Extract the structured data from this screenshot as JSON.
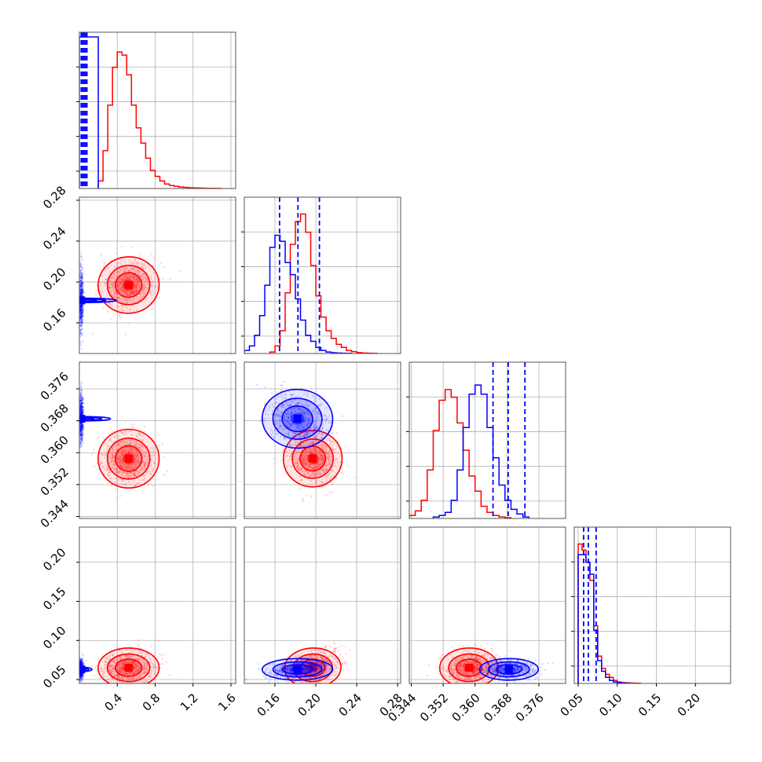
{
  "chart_data": {
    "type": "corner",
    "colors": {
      "blue": "#0000ff",
      "red": "#ff0000",
      "grid": "#b0b0b0",
      "frame": "#555555"
    },
    "grid": true,
    "parameters": [
      {
        "id": "p0",
        "range": [
          0,
          1.65
        ],
        "ticks": [
          "0.4",
          "0.8",
          "1.2",
          "1.6"
        ],
        "tick_values": [
          0.4,
          0.8,
          1.2,
          1.6
        ]
      },
      {
        "id": "p1",
        "range": [
          0.13,
          0.283
        ],
        "ticks": [
          "0.16",
          "0.20",
          "0.24",
          "0.28"
        ],
        "tick_values": [
          0.16,
          0.2,
          0.24,
          0.28
        ]
      },
      {
        "id": "p2",
        "range": [
          0.3435,
          0.3827
        ],
        "ticks": [
          "0.344",
          "0.352",
          "0.360",
          "0.368",
          "0.376"
        ],
        "tick_values": [
          0.344,
          0.352,
          0.36,
          0.368,
          0.376
        ]
      },
      {
        "id": "p3",
        "range": [
          0.045,
          0.245
        ],
        "ticks": [
          "0.05",
          "0.10",
          "0.15",
          "0.20"
        ],
        "tick_values": [
          0.05,
          0.1,
          0.15,
          0.2
        ]
      }
    ],
    "histograms": [
      {
        "param": 0,
        "ymax": 1.0,
        "blue": {
          "x0": 0.0,
          "binwidth": 0.2,
          "counts": [
            1.0
          ]
        },
        "red": {
          "x0": 0.2,
          "binwidth": 0.05,
          "counts": [
            0.05,
            0.25,
            0.55,
            0.8,
            0.9,
            0.88,
            0.75,
            0.55,
            0.4,
            0.3,
            0.2,
            0.12,
            0.08,
            0.05,
            0.03,
            0.02,
            0.015,
            0.01,
            0.008,
            0.005,
            0.004,
            0.003,
            0.002,
            0.0015,
            0.001,
            0.0008
          ]
        },
        "quantiles_blue": [
          0.02,
          0.035,
          0.05,
          0.065,
          0.08
        ]
      },
      {
        "param": 1,
        "ymax": 1.0,
        "blue": {
          "x0": 0.13,
          "binwidth": 0.005,
          "counts": [
            0.02,
            0.05,
            0.12,
            0.25,
            0.45,
            0.7,
            0.78,
            0.74,
            0.6,
            0.52,
            0.36,
            0.22,
            0.12,
            0.08,
            0.04,
            0.02,
            0.01,
            0.005,
            0.003,
            0.002,
            0.001
          ]
        },
        "red": {
          "x0": 0.155,
          "binwidth": 0.005,
          "counts": [
            0.01,
            0.05,
            0.15,
            0.4,
            0.72,
            0.87,
            0.92,
            0.8,
            0.58,
            0.38,
            0.24,
            0.15,
            0.1,
            0.06,
            0.04,
            0.02,
            0.012,
            0.006,
            0.003,
            0.002,
            0.001
          ]
        },
        "quantiles_blue": [
          0.1645,
          0.1825,
          0.2035
        ]
      },
      {
        "param": 2,
        "ymax": 1.0,
        "red": {
          "x0": 0.3435,
          "binwidth": 0.0015,
          "counts": [
            0.02,
            0.05,
            0.12,
            0.32,
            0.58,
            0.78,
            0.85,
            0.8,
            0.63,
            0.45,
            0.28,
            0.18,
            0.08,
            0.04,
            0.02,
            0.01,
            0.005
          ]
        },
        "blue": {
          "x0": 0.3495,
          "binwidth": 0.0015,
          "counts": [
            0.01,
            0.02,
            0.04,
            0.12,
            0.32,
            0.6,
            0.82,
            0.88,
            0.82,
            0.6,
            0.4,
            0.22,
            0.12,
            0.06,
            0.03,
            0.01
          ]
        },
        "quantiles_blue": [
          0.3645,
          0.3683,
          0.3725
        ]
      },
      {
        "param": 3,
        "ymax": 1.0,
        "blue": {
          "x0": 0.05,
          "binwidth": 0.005,
          "counts": [
            0.85,
            0.85,
            0.8,
            0.72,
            0.35,
            0.15,
            0.08,
            0.04,
            0.02,
            0.01,
            0.005,
            0.003,
            0.002
          ]
        },
        "red": {
          "x0": 0.05,
          "binwidth": 0.005,
          "counts": [
            0.92,
            0.88,
            0.8,
            0.68,
            0.38,
            0.18,
            0.1,
            0.06,
            0.04,
            0.02,
            0.01,
            0.006,
            0.004,
            0.003,
            0.002,
            0.001
          ]
        },
        "quantiles_blue": [
          0.057,
          0.063,
          0.073
        ]
      }
    ],
    "posteriors": {
      "blue": {
        "mean": [
          0.02,
          0.182,
          0.3685,
          0.063
        ],
        "sd": [
          0.01,
          0.015,
          0.0032,
          0.006
        ],
        "corr": [
          [
            1,
            0,
            0,
            0
          ],
          [
            0,
            1,
            -0.3,
            0.4
          ],
          [
            0,
            -0.3,
            1,
            0.15
          ],
          [
            0,
            0.4,
            0.15,
            1
          ]
        ]
      },
      "red": {
        "mean": [
          0.52,
          0.197,
          0.3585,
          0.065
        ],
        "sd": [
          0.14,
          0.012,
          0.0032,
          0.011
        ],
        "corr": [
          [
            1,
            0.2,
            0,
            0.1
          ],
          [
            0.2,
            1,
            -0.15,
            0.45
          ],
          [
            0,
            -0.15,
            1,
            0.15
          ],
          [
            0.1,
            0.45,
            0.15,
            1
          ]
        ]
      }
    }
  }
}
